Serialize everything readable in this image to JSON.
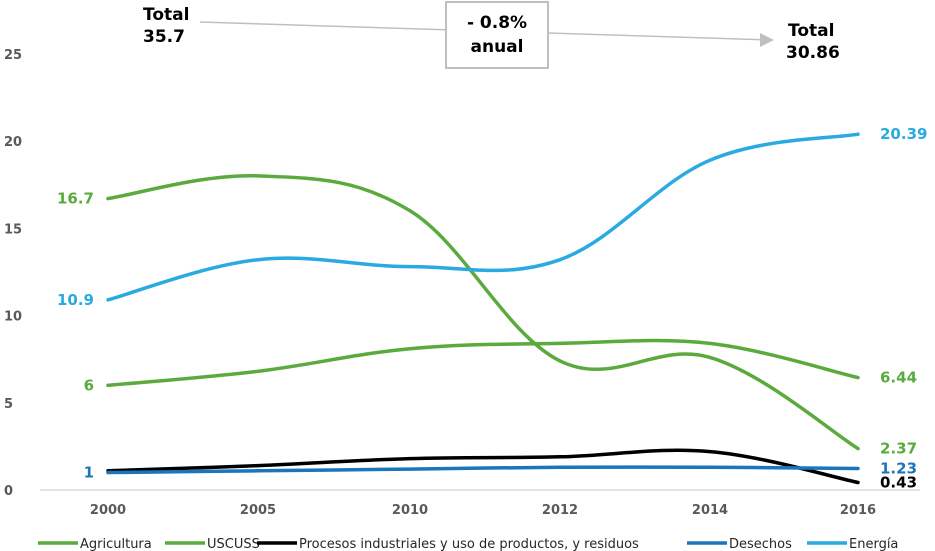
{
  "chart_data": {
    "type": "line",
    "x": [
      "2000",
      "2005",
      "2010",
      "2012",
      "2014",
      "2016"
    ],
    "ylim": [
      0,
      25
    ],
    "yticks": [
      0,
      5,
      10,
      15,
      20,
      25
    ],
    "grid": false,
    "legend_position": "bottom",
    "series": [
      {
        "name": "Agricultura",
        "color": "#5AAA3E",
        "values": [
          16.7,
          18.0,
          16.0,
          7.4,
          7.6,
          2.37
        ],
        "labels": [
          {
            "index": 0,
            "text": "16.7"
          },
          {
            "index": 5,
            "text": "2.37"
          }
        ]
      },
      {
        "name": "USCUSS",
        "color": "#5AAA3E",
        "values": [
          6,
          6.8,
          8.1,
          8.4,
          8.4,
          6.44
        ],
        "labels": [
          {
            "index": 0,
            "text": "6"
          },
          {
            "index": 5,
            "text": "6.44"
          }
        ]
      },
      {
        "name": "Procesos industriales y uso de productos, y residuos",
        "color": "#000000",
        "values": [
          1.1,
          1.4,
          1.8,
          1.9,
          2.2,
          0.43
        ],
        "labels": [
          {
            "index": 5,
            "text": "0.43"
          }
        ]
      },
      {
        "name": "Desechos",
        "color": "#1B75BB",
        "values": [
          1.0,
          1.1,
          1.2,
          1.3,
          1.3,
          1.23
        ],
        "labels": [
          {
            "index": 0,
            "text": "1"
          },
          {
            "index": 5,
            "text": "1.23"
          }
        ]
      },
      {
        "name": "Energía",
        "color": "#29AAE1",
        "values": [
          10.9,
          13.2,
          12.8,
          13.2,
          18.9,
          20.39
        ],
        "labels": [
          {
            "index": 0,
            "text": "10.9"
          },
          {
            "index": 5,
            "text": "20.39"
          }
        ]
      }
    ],
    "annotations": {
      "total_start": [
        "Total",
        "35.7"
      ],
      "total_end": [
        "Total",
        "30.86"
      ],
      "rate": [
        "- 0.8%",
        "anual"
      ]
    }
  }
}
